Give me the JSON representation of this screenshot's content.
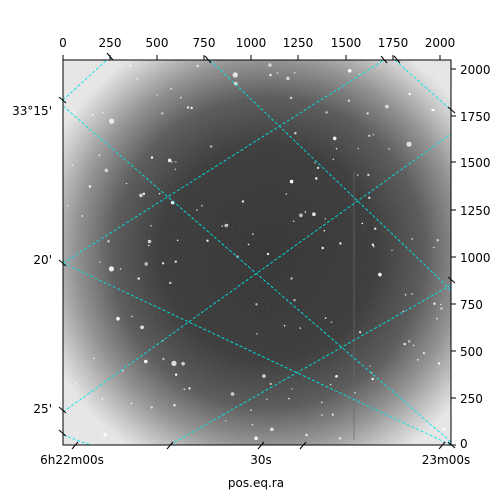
{
  "axes": {
    "xlabel": "pos.eq.ra",
    "pixel_x_ticks": [
      "0",
      "250",
      "500",
      "750",
      "1000",
      "1250",
      "1500",
      "1750",
      "2000"
    ],
    "pixel_y_ticks": [
      "0",
      "250",
      "500",
      "750",
      "1000",
      "1250",
      "1500",
      "1750",
      "2000"
    ],
    "dec_ticks": [
      "33°15'",
      "20'",
      "25'"
    ],
    "ra_ticks": [
      "6h22m00s",
      "30s",
      "23m00s"
    ]
  },
  "colors": {
    "grid": "#00e5e5",
    "frame": "#000000"
  }
}
